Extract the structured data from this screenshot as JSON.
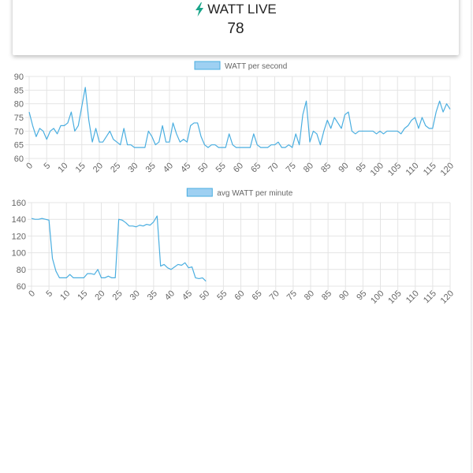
{
  "header": {
    "title": "WATT LIVE",
    "value": "78"
  },
  "colors": {
    "line": "#4aaee0",
    "legend_fill": "#9ed0f2",
    "legend_stroke": "#4aaee0",
    "grid": "#e4e4e4",
    "text": "#666666",
    "bolt": "#1aa58a"
  },
  "chart_data": [
    {
      "type": "line",
      "legend": "WATT per second",
      "ylim": [
        60,
        90
      ],
      "yticks": [
        60,
        65,
        70,
        75,
        80,
        85,
        90
      ],
      "xlim": [
        0,
        120
      ],
      "xticks": [
        0,
        5,
        10,
        15,
        20,
        25,
        30,
        35,
        40,
        45,
        50,
        55,
        60,
        65,
        70,
        75,
        80,
        85,
        90,
        95,
        100,
        105,
        110,
        115,
        120
      ],
      "grid": true,
      "legend_position": "top",
      "series": [
        {
          "values": [
            77,
            72,
            68,
            71,
            70,
            67,
            70,
            71,
            69,
            72,
            72,
            73,
            77,
            70,
            72,
            79,
            86,
            74,
            66,
            71,
            66,
            66,
            68,
            70,
            67,
            66,
            65,
            71,
            65,
            65,
            64,
            64,
            64,
            64,
            70,
            68,
            65,
            66,
            72,
            66,
            66,
            73,
            69,
            66,
            67,
            66,
            72,
            73,
            73,
            68,
            65,
            64,
            65,
            65,
            64,
            64,
            64,
            69,
            65,
            64,
            64,
            64,
            64,
            64,
            69,
            65,
            64,
            64,
            64,
            65,
            65,
            66,
            64,
            64,
            65,
            64,
            69,
            65,
            76,
            81,
            66,
            70,
            69,
            65,
            70,
            74,
            71,
            75,
            73,
            71,
            76,
            77,
            70,
            69,
            70,
            70,
            70,
            70,
            70,
            69,
            70,
            69,
            70,
            70,
            70,
            70,
            69,
            71,
            72,
            74,
            75,
            71,
            75,
            72,
            71,
            71,
            77,
            81,
            77,
            80,
            78
          ]
        }
      ]
    },
    {
      "type": "line",
      "legend": "avg WATT per minute",
      "ylim": [
        60,
        160
      ],
      "yticks": [
        60,
        80,
        100,
        120,
        140,
        160
      ],
      "xlim": [
        0,
        120
      ],
      "xticks": [
        0,
        5,
        10,
        15,
        20,
        25,
        30,
        35,
        40,
        45,
        50,
        55,
        60,
        65,
        70,
        75,
        80,
        85,
        90,
        95,
        100,
        105,
        110,
        115,
        120
      ],
      "grid": true,
      "legend_position": "top",
      "series": [
        {
          "values": [
            141,
            140,
            140,
            141,
            140,
            139,
            93,
            78,
            70,
            70,
            70,
            74,
            70,
            70,
            70,
            70,
            75,
            75,
            74,
            80,
            70,
            70,
            72,
            70,
            70,
            140,
            139,
            136,
            132,
            132,
            131,
            133,
            132,
            134,
            133,
            137,
            144,
            84,
            86,
            82,
            80,
            83,
            86,
            85,
            88,
            82,
            83,
            70,
            69,
            70,
            66
          ]
        }
      ]
    }
  ]
}
